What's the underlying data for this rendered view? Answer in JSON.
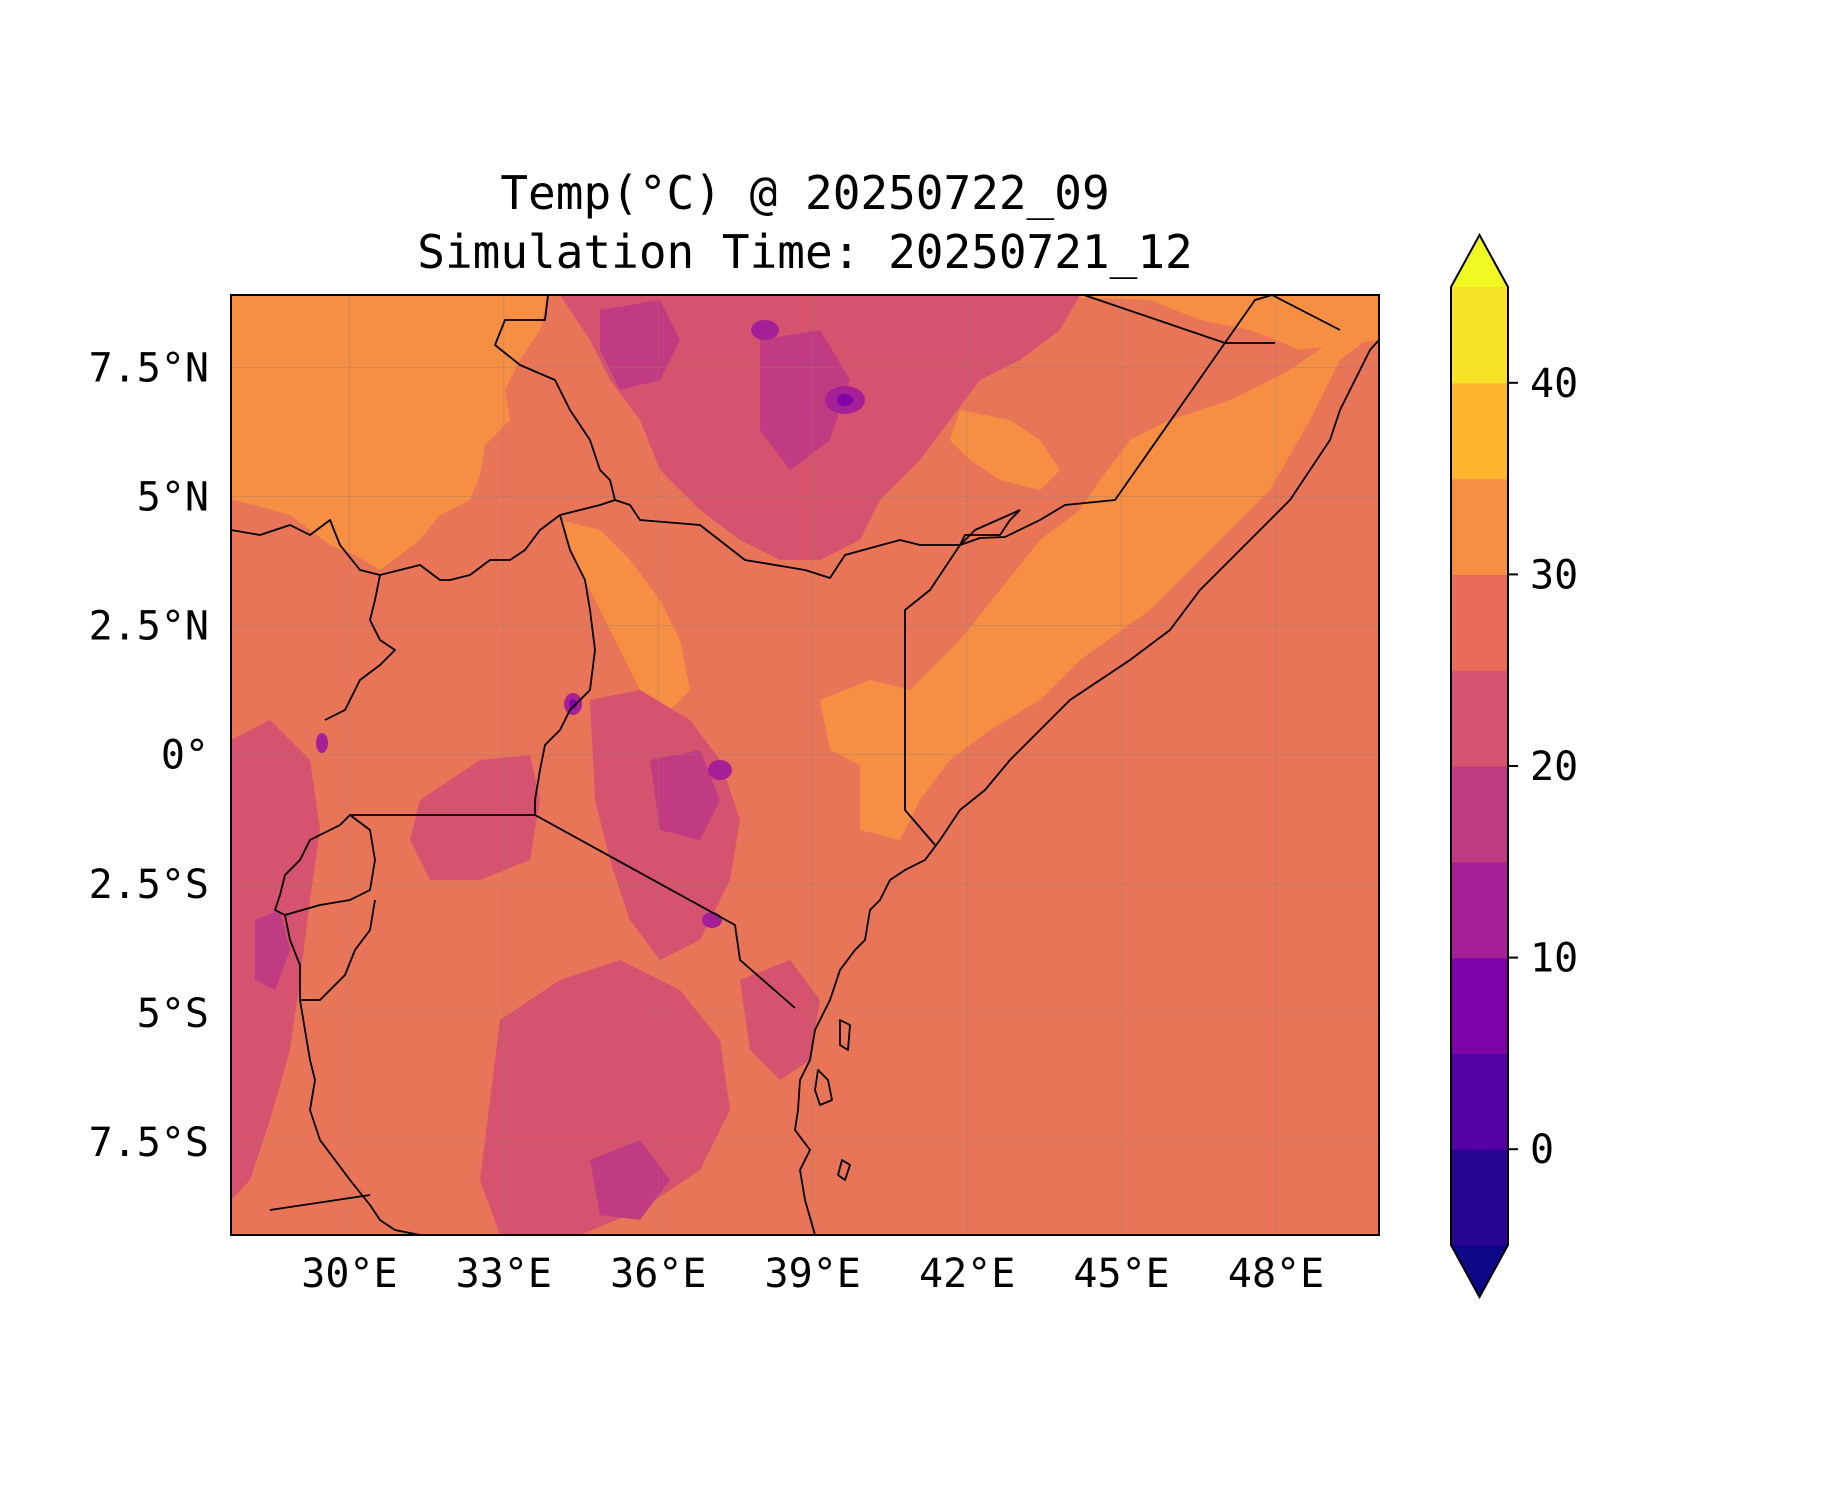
{
  "title": {
    "line1": "Temp(°C) @ 20250722_09",
    "line2": "Simulation Time: 20250721_12"
  },
  "map": {
    "type": "filled-contour",
    "variable": "Temp(°C)",
    "projection": "PlateCarree",
    "lon_range": [
      27.7,
      50.0
    ],
    "lat_range": [
      -9.3,
      8.9
    ],
    "lon_ticks": [
      30,
      33,
      36,
      39,
      42,
      45,
      48
    ],
    "lat_ticks": [
      7.5,
      5,
      2.5,
      0,
      -2.5,
      -5,
      -7.5
    ],
    "lon_tick_labels": [
      "30°E",
      "33°E",
      "36°E",
      "39°E",
      "42°E",
      "45°E",
      "48°E"
    ],
    "lat_tick_labels": [
      "7.5°N",
      "5°N",
      "2.5°N",
      "0°",
      "2.5°S",
      "5°S",
      "7.5°S"
    ],
    "gridlines": true,
    "features": [
      "country borders",
      "coastline",
      "lakes"
    ]
  },
  "colorbar": {
    "cmap": "plasma",
    "extend": "both",
    "levels": [
      -5,
      0,
      5,
      10,
      15,
      20,
      25,
      30,
      35,
      40,
      45
    ],
    "tick_values": [
      0,
      10,
      20,
      30,
      40
    ],
    "tick_labels": [
      "0",
      "10",
      "20",
      "30",
      "40"
    ],
    "colors": [
      "#0d0887",
      "#270592",
      "#5302a3",
      "#7e03a8",
      "#a51f97",
      "#c13b82",
      "#d5536f",
      "#e86b58",
      "#f68f44",
      "#fdb42f",
      "#f7e225",
      "#f0f921"
    ]
  }
}
